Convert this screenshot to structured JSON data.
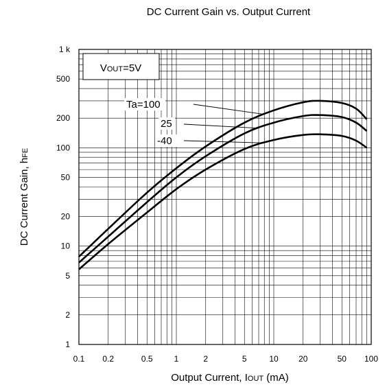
{
  "chart_data": {
    "type": "line",
    "title": "DC Current Gain vs. Output Current",
    "xlabel": {
      "main": "Output Current, I",
      "sub": "OUT",
      "unit": " (mA)"
    },
    "ylabel": {
      "main": "DC Current Gain, h",
      "sub": "FE"
    },
    "xscale": "log",
    "yscale": "log",
    "xlim": [
      0.1,
      100
    ],
    "ylim": [
      1,
      1000
    ],
    "grid": true,
    "xticks": [
      {
        "value": 0.1,
        "label": "0.1"
      },
      {
        "value": 0.2,
        "label": "0.2"
      },
      {
        "value": 0.5,
        "label": "0.5"
      },
      {
        "value": 1,
        "label": "1"
      },
      {
        "value": 2,
        "label": "2"
      },
      {
        "value": 5,
        "label": "5"
      },
      {
        "value": 10,
        "label": "10"
      },
      {
        "value": 20,
        "label": "20"
      },
      {
        "value": 50,
        "label": "50"
      },
      {
        "value": 100,
        "label": "100"
      }
    ],
    "yticks": [
      {
        "value": 1,
        "label": "1"
      },
      {
        "value": 2,
        "label": "2"
      },
      {
        "value": 5,
        "label": "5"
      },
      {
        "value": 10,
        "label": "10"
      },
      {
        "value": 20,
        "label": "20"
      },
      {
        "value": 50,
        "label": "50"
      },
      {
        "value": 100,
        "label": "100"
      },
      {
        "value": 200,
        "label": "200"
      },
      {
        "value": 500,
        "label": "500"
      },
      {
        "value": 1000,
        "label": "1 k"
      }
    ],
    "condition": {
      "main": "V",
      "sub": "OUT",
      "rest": "=5V"
    },
    "series": [
      {
        "name": "Ta=100",
        "x": [
          0.1,
          0.2,
          0.5,
          1,
          2,
          5,
          10,
          20,
          30,
          50,
          70,
          90
        ],
        "y": [
          7.8,
          15,
          35,
          62,
          103,
          180,
          240,
          290,
          300,
          285,
          250,
          195
        ]
      },
      {
        "name": "25",
        "x": [
          0.1,
          0.2,
          0.5,
          1,
          2,
          5,
          10,
          20,
          30,
          50,
          70,
          90
        ],
        "y": [
          6.8,
          12.5,
          28,
          50,
          82,
          140,
          180,
          210,
          215,
          205,
          180,
          148
        ]
      },
      {
        "name": "-40",
        "x": [
          0.1,
          0.2,
          0.5,
          1,
          2,
          5,
          10,
          20,
          30,
          50,
          70,
          90
        ],
        "y": [
          5.8,
          10.5,
          22,
          38,
          60,
          97,
          120,
          135,
          137,
          132,
          118,
          100
        ]
      }
    ]
  }
}
